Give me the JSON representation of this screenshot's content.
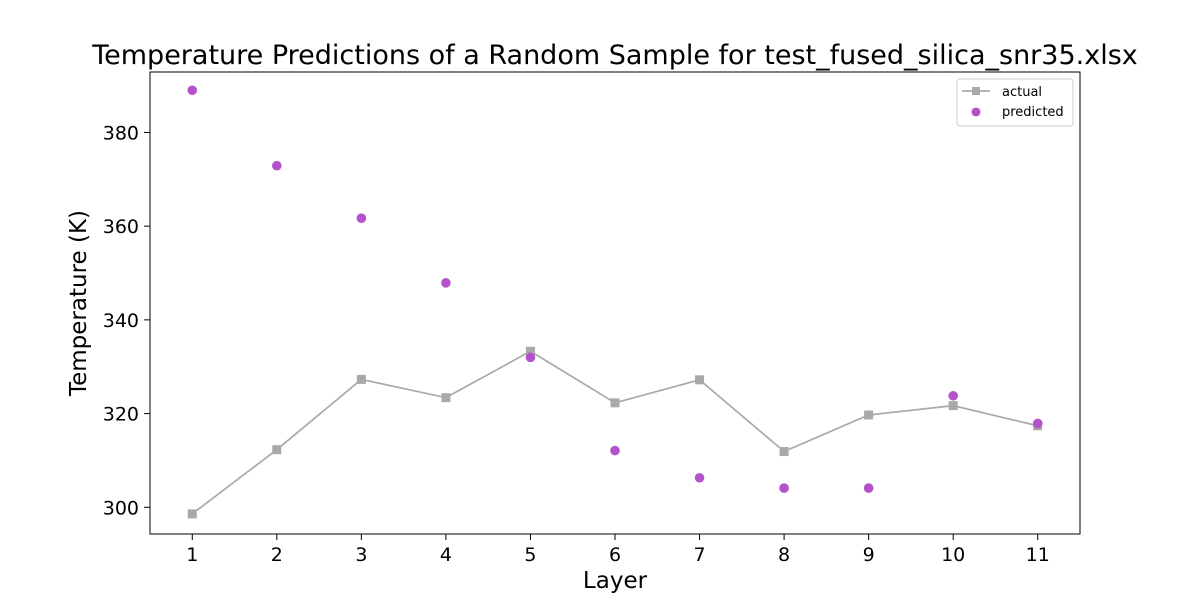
{
  "colors": {
    "actual": "#a9a9a9",
    "predicted": "#b452cd",
    "axes": "#000000",
    "background": "#ffffff"
  },
  "chart_data": {
    "type": "scatter",
    "title": "Temperature Predictions of a Random Sample for test_fused_silica_snr35.xlsx",
    "xlabel": "Layer",
    "ylabel": "Temperature (K)",
    "x": [
      1,
      2,
      3,
      4,
      5,
      6,
      7,
      8,
      9,
      10,
      11
    ],
    "x_ticks": [
      "1",
      "2",
      "3",
      "4",
      "5",
      "6",
      "7",
      "8",
      "9",
      "10",
      "11"
    ],
    "y_ticks": [
      "300",
      "320",
      "340",
      "360",
      "380"
    ],
    "xlim": [
      0.5,
      11.5
    ],
    "ylim": [
      294.3,
      392.9
    ],
    "grid": false,
    "legend_position": "top-right",
    "series": [
      {
        "name": "actual",
        "style": "line-square",
        "values": [
          298.6,
          312.3,
          327.3,
          323.4,
          333.3,
          322.3,
          327.2,
          311.9,
          319.7,
          321.7,
          317.4
        ]
      },
      {
        "name": "predicted",
        "style": "marker-circle",
        "values": [
          389.0,
          372.9,
          361.7,
          347.9,
          332.0,
          312.1,
          306.3,
          304.1,
          304.1,
          323.8,
          317.9
        ]
      }
    ]
  }
}
